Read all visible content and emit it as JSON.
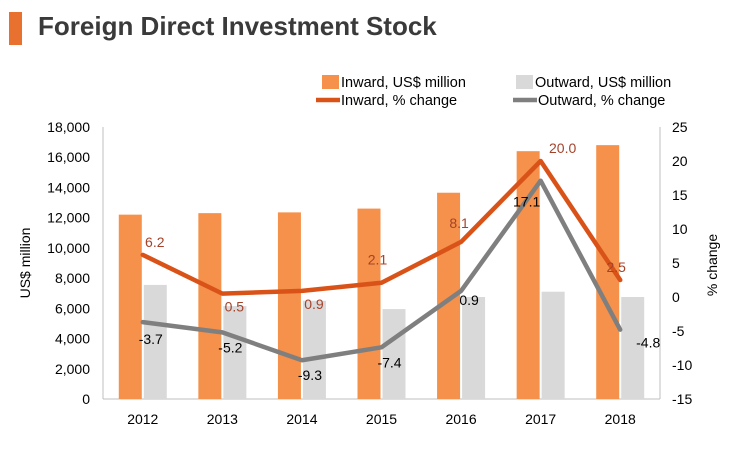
{
  "title": "Foreign Direct Investment Stock",
  "colors": {
    "accent": "#e8712f",
    "inward_bar": "#f5914a",
    "outward_bar": "#d9d9d9",
    "inward_line": "#d95319",
    "outward_line": "#7f7f7f",
    "inward_label": "#a5422a",
    "outward_label": "#000000"
  },
  "chart_data": {
    "type": "bar",
    "categories": [
      "2012",
      "2013",
      "2014",
      "2015",
      "2016",
      "2017",
      "2018"
    ],
    "ylabel": "US$ million",
    "y2label": "% change",
    "ylim": [
      0,
      18000
    ],
    "y2lim": [
      -15,
      25
    ],
    "yticks": [
      "0",
      "2,000",
      "4,000",
      "6,000",
      "8,000",
      "10,000",
      "12,000",
      "14,000",
      "16,000",
      "18,000"
    ],
    "y2ticks": [
      "-15",
      "-10",
      "-5",
      "0",
      "5",
      "10",
      "15",
      "20",
      "25"
    ],
    "legend_position": "top",
    "series": [
      {
        "name": "Inward, US$ million",
        "kind": "bar",
        "axis": "left",
        "values": [
          12200,
          12300,
          12350,
          12600,
          13650,
          16400,
          16800
        ]
      },
      {
        "name": "Outward, US$ million",
        "kind": "bar",
        "axis": "left",
        "values": [
          7550,
          6150,
          6500,
          5950,
          6750,
          7100,
          6750
        ]
      },
      {
        "name": "Inward, % change",
        "kind": "line",
        "axis": "right",
        "values": [
          6.2,
          0.5,
          0.9,
          2.1,
          8.1,
          20.0,
          2.5
        ],
        "labels": [
          "6.2",
          "0.5",
          "0.9",
          "2.1",
          "8.1",
          "20.0",
          "2.5"
        ]
      },
      {
        "name": "Outward, % change",
        "kind": "line",
        "axis": "right",
        "values": [
          -3.7,
          -5.2,
          -9.3,
          -7.4,
          0.9,
          17.1,
          -4.8
        ],
        "labels": [
          "-3.7",
          "-5.2",
          "-9.3",
          "-7.4",
          "0.9",
          "17.1",
          "-4.8"
        ]
      }
    ]
  }
}
